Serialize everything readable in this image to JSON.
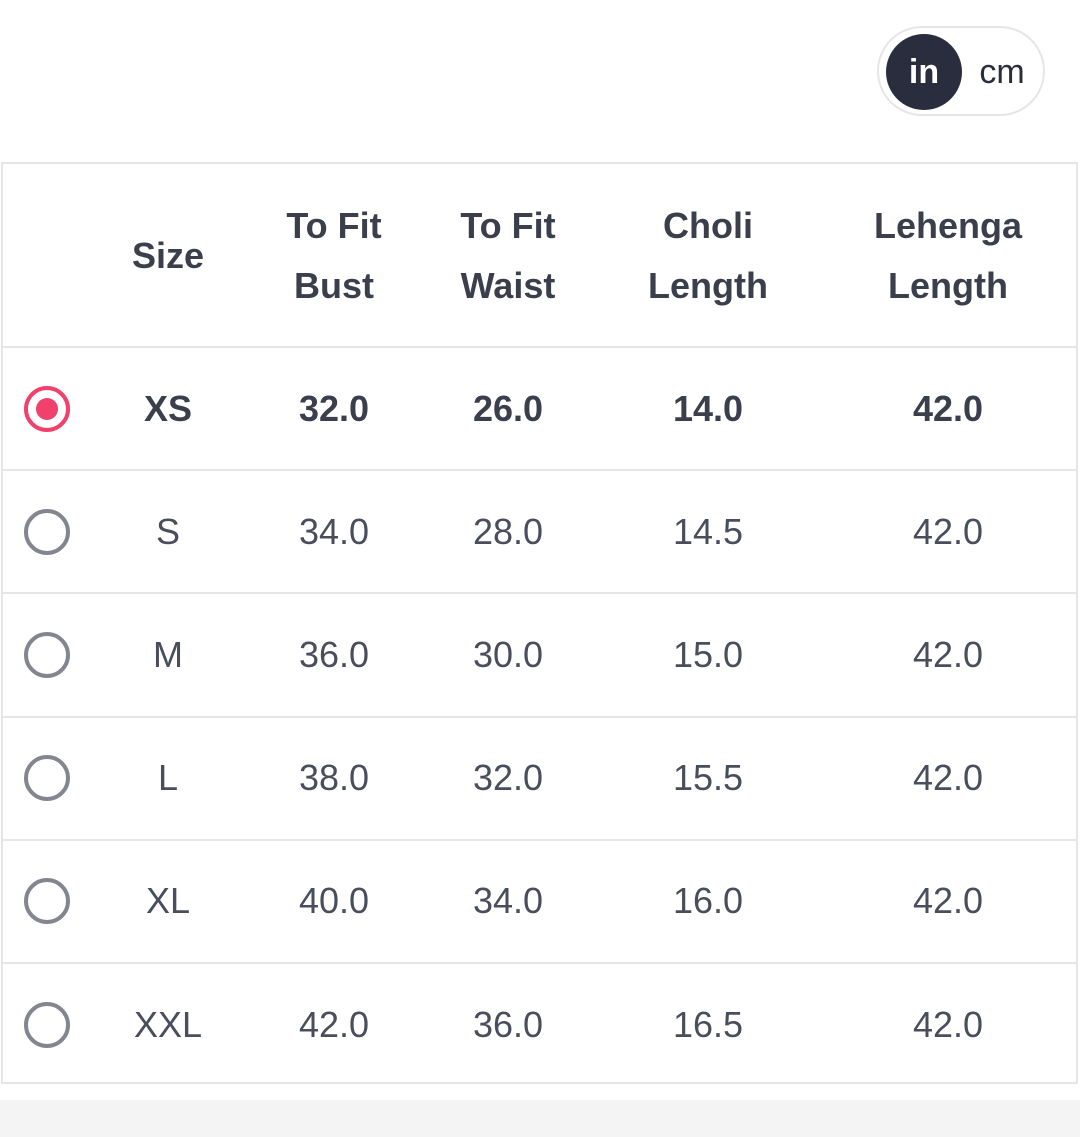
{
  "units": [
    "in",
    "cm"
  ],
  "table": {
    "headers": [
      "Size",
      "To Fit Bust",
      "To Fit Waist",
      "Choli Length",
      "Lehenga Length"
    ],
    "rows": [
      [
        "XS",
        "32.0",
        "26.0",
        "14.0",
        "42.0"
      ],
      [
        "S",
        "34.0",
        "28.0",
        "14.5",
        "42.0"
      ],
      [
        "M",
        "36.0",
        "30.0",
        "15.0",
        "42.0"
      ],
      [
        "L",
        "38.0",
        "32.0",
        "15.5",
        "42.0"
      ],
      [
        "XL",
        "40.0",
        "34.0",
        "16.0",
        "42.0"
      ],
      [
        "XXL",
        "42.0",
        "36.0",
        "16.5",
        "42.0"
      ]
    ]
  }
}
